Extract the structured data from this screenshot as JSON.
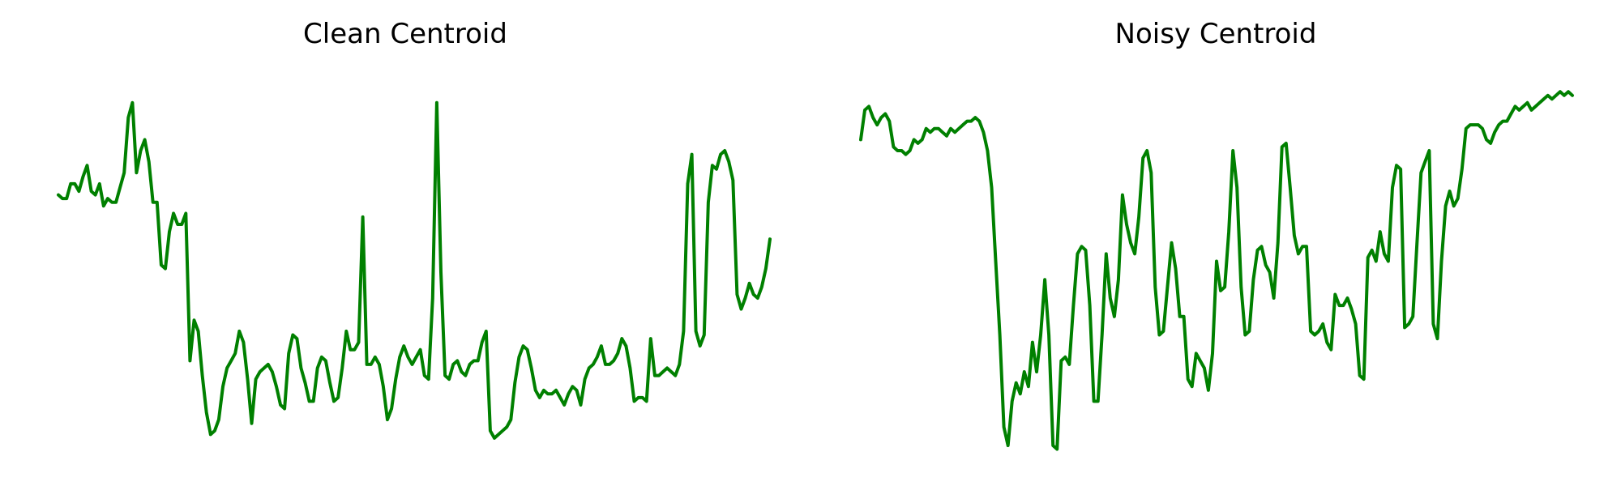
{
  "chart_data": [
    {
      "type": "line",
      "title": "Clean Centroid",
      "xlabel": "",
      "ylabel": "",
      "grid": false,
      "axes_visible": false,
      "color": "#008000",
      "ylim": [
        0,
        1
      ],
      "series": [
        {
          "values": [
            0.68,
            0.67,
            0.67,
            0.71,
            0.71,
            0.69,
            0.73,
            0.76,
            0.69,
            0.68,
            0.71,
            0.65,
            0.67,
            0.66,
            0.66,
            0.7,
            0.74,
            0.89,
            0.93,
            0.74,
            0.8,
            0.83,
            0.77,
            0.66,
            0.66,
            0.49,
            0.48,
            0.58,
            0.63,
            0.6,
            0.6,
            0.63,
            0.23,
            0.34,
            0.31,
            0.19,
            0.09,
            0.03,
            0.04,
            0.07,
            0.16,
            0.21,
            0.23,
            0.25,
            0.31,
            0.28,
            0.18,
            0.06,
            0.18,
            0.2,
            0.21,
            0.22,
            0.2,
            0.16,
            0.11,
            0.1,
            0.25,
            0.3,
            0.29,
            0.21,
            0.17,
            0.12,
            0.12,
            0.21,
            0.24,
            0.23,
            0.17,
            0.12,
            0.13,
            0.21,
            0.31,
            0.26,
            0.26,
            0.28,
            0.62,
            0.22,
            0.22,
            0.24,
            0.22,
            0.16,
            0.07,
            0.1,
            0.18,
            0.24,
            0.27,
            0.24,
            0.22,
            0.24,
            0.26,
            0.19,
            0.18,
            0.4,
            0.93,
            0.47,
            0.19,
            0.18,
            0.22,
            0.23,
            0.2,
            0.19,
            0.22,
            0.23,
            0.23,
            0.28,
            0.31,
            0.04,
            0.02,
            0.03,
            0.04,
            0.05,
            0.07,
            0.17,
            0.24,
            0.27,
            0.26,
            0.21,
            0.15,
            0.13,
            0.15,
            0.14,
            0.14,
            0.15,
            0.13,
            0.11,
            0.14,
            0.16,
            0.15,
            0.11,
            0.18,
            0.21,
            0.22,
            0.24,
            0.27,
            0.22,
            0.22,
            0.23,
            0.25,
            0.29,
            0.27,
            0.21,
            0.12,
            0.13,
            0.13,
            0.12,
            0.29,
            0.19,
            0.19,
            0.2,
            0.21,
            0.2,
            0.19,
            0.22,
            0.31,
            0.71,
            0.79,
            0.31,
            0.27,
            0.3,
            0.66,
            0.76,
            0.75,
            0.79,
            0.8,
            0.77,
            0.72,
            0.41,
            0.37,
            0.4,
            0.44,
            0.41,
            0.4,
            0.43,
            0.48,
            0.56
          ]
        }
      ]
    },
    {
      "type": "line",
      "title": "Noisy Centroid",
      "xlabel": "",
      "ylabel": "",
      "grid": false,
      "axes_visible": false,
      "color": "#008000",
      "ylim": [
        0,
        1
      ],
      "series": [
        {
          "values": [
            0.83,
            0.91,
            0.92,
            0.89,
            0.87,
            0.89,
            0.9,
            0.88,
            0.81,
            0.8,
            0.8,
            0.79,
            0.8,
            0.83,
            0.82,
            0.83,
            0.86,
            0.85,
            0.86,
            0.86,
            0.85,
            0.84,
            0.86,
            0.85,
            0.86,
            0.87,
            0.88,
            0.88,
            0.89,
            0.88,
            0.85,
            0.8,
            0.7,
            0.5,
            0.3,
            0.05,
            0.0,
            0.12,
            0.17,
            0.14,
            0.2,
            0.16,
            0.28,
            0.2,
            0.3,
            0.45,
            0.3,
            0.0,
            -0.01,
            0.23,
            0.24,
            0.22,
            0.38,
            0.52,
            0.54,
            0.53,
            0.38,
            0.12,
            0.12,
            0.3,
            0.52,
            0.4,
            0.35,
            0.45,
            0.68,
            0.6,
            0.55,
            0.52,
            0.62,
            0.78,
            0.8,
            0.74,
            0.43,
            0.3,
            0.31,
            0.43,
            0.55,
            0.48,
            0.35,
            0.35,
            0.18,
            0.16,
            0.25,
            0.23,
            0.21,
            0.15,
            0.25,
            0.5,
            0.42,
            0.43,
            0.58,
            0.8,
            0.7,
            0.43,
            0.3,
            0.31,
            0.45,
            0.53,
            0.54,
            0.49,
            0.47,
            0.4,
            0.55,
            0.81,
            0.82,
            0.7,
            0.57,
            0.52,
            0.54,
            0.54,
            0.31,
            0.3,
            0.31,
            0.33,
            0.28,
            0.26,
            0.41,
            0.38,
            0.38,
            0.4,
            0.37,
            0.33,
            0.19,
            0.18,
            0.51,
            0.53,
            0.5,
            0.58,
            0.52,
            0.5,
            0.7,
            0.76,
            0.75,
            0.32,
            0.33,
            0.35,
            0.55,
            0.74,
            0.77,
            0.8,
            0.33,
            0.29,
            0.5,
            0.65,
            0.69,
            0.65,
            0.67,
            0.75,
            0.86,
            0.87,
            0.87,
            0.87,
            0.86,
            0.83,
            0.82,
            0.85,
            0.87,
            0.88,
            0.88,
            0.9,
            0.92,
            0.91,
            0.92,
            0.93,
            0.91,
            0.92,
            0.93,
            0.94,
            0.95,
            0.94,
            0.95,
            0.96,
            0.95,
            0.96,
            0.95
          ]
        }
      ]
    }
  ]
}
